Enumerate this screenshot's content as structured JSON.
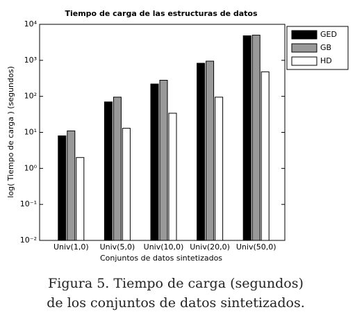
{
  "chart_data": {
    "type": "bar",
    "title": "Tiempo de carga de las estructuras de datos",
    "xlabel": "Conjuntos de datos sintetizados",
    "ylabel": "log( Tiempo de carga ) (segundos)",
    "categories": [
      "Univ(1,0)",
      "Univ(5,0)",
      "Univ(10,0)",
      "Univ(20,0)",
      "Univ(50,0)"
    ],
    "series": [
      {
        "name": "GED",
        "color": "#000000",
        "values": [
          8,
          70,
          220,
          830,
          4800
        ]
      },
      {
        "name": "GB",
        "color": "#999999",
        "values": [
          11,
          95,
          280,
          950,
          5000
        ]
      },
      {
        "name": "HD",
        "color": "#ffffff",
        "values": [
          2,
          13,
          34,
          95,
          480
        ]
      }
    ],
    "log_scale": true,
    "ylim": [
      0.01,
      10000
    ],
    "yticks": [
      {
        "value": 0.01,
        "label": "10⁻²"
      },
      {
        "value": 0.1,
        "label": "10⁻¹"
      },
      {
        "value": 1,
        "label": "10⁰"
      },
      {
        "value": 10,
        "label": "10¹"
      },
      {
        "value": 100,
        "label": "10²"
      },
      {
        "value": 1000,
        "label": "10³"
      },
      {
        "value": 10000,
        "label": "10⁴"
      }
    ],
    "legend": "upper-right-outside"
  },
  "caption": [
    "Figura 5. Tiempo de carga (segundos)",
    "de los conjuntos de datos sintetizados."
  ]
}
